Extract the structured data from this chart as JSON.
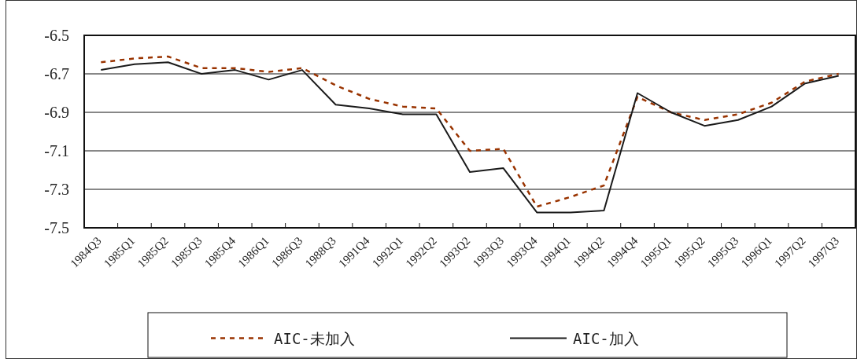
{
  "chart_data": {
    "type": "line",
    "categories": [
      "1984Q3",
      "1985Q1",
      "1985Q2",
      "1985Q3",
      "1985Q4",
      "1986Q1",
      "1986Q3",
      "1988Q3",
      "1991Q4",
      "1992Q1",
      "1992Q2",
      "1993Q2",
      "1993Q3",
      "1993Q4",
      "1994Q1",
      "1994Q2",
      "1994Q4",
      "1995Q1",
      "1995Q2",
      "1995Q3",
      "1996Q1",
      "1997Q2",
      "1997Q3"
    ],
    "series": [
      {
        "name": "AIC-未加入",
        "color": "#993300",
        "line_style": "dashed",
        "values": [
          -6.64,
          -6.62,
          -6.61,
          -6.67,
          -6.67,
          -6.69,
          -6.67,
          -6.76,
          -6.83,
          -6.87,
          -6.88,
          -7.1,
          -7.09,
          -7.39,
          -7.34,
          -7.28,
          -6.82,
          -6.9,
          -6.94,
          -6.91,
          -6.85,
          -6.74,
          -6.7
        ]
      },
      {
        "name": "AIC-加入",
        "color": "#1a1a1a",
        "line_style": "solid",
        "values": [
          -6.68,
          -6.65,
          -6.64,
          -6.7,
          -6.68,
          -6.73,
          -6.68,
          -6.86,
          -6.88,
          -6.91,
          -6.91,
          -7.21,
          -7.19,
          -7.42,
          -7.42,
          -7.41,
          -6.8,
          -6.9,
          -6.97,
          -6.94,
          -6.87,
          -6.75,
          -6.71
        ]
      }
    ],
    "ylim": [
      -7.5,
      -6.5
    ],
    "yticks": [
      -6.5,
      -6.7,
      -6.9,
      -7.1,
      -7.3,
      -7.5
    ],
    "grid": "y",
    "legend": "bottom",
    "marker": "none"
  }
}
